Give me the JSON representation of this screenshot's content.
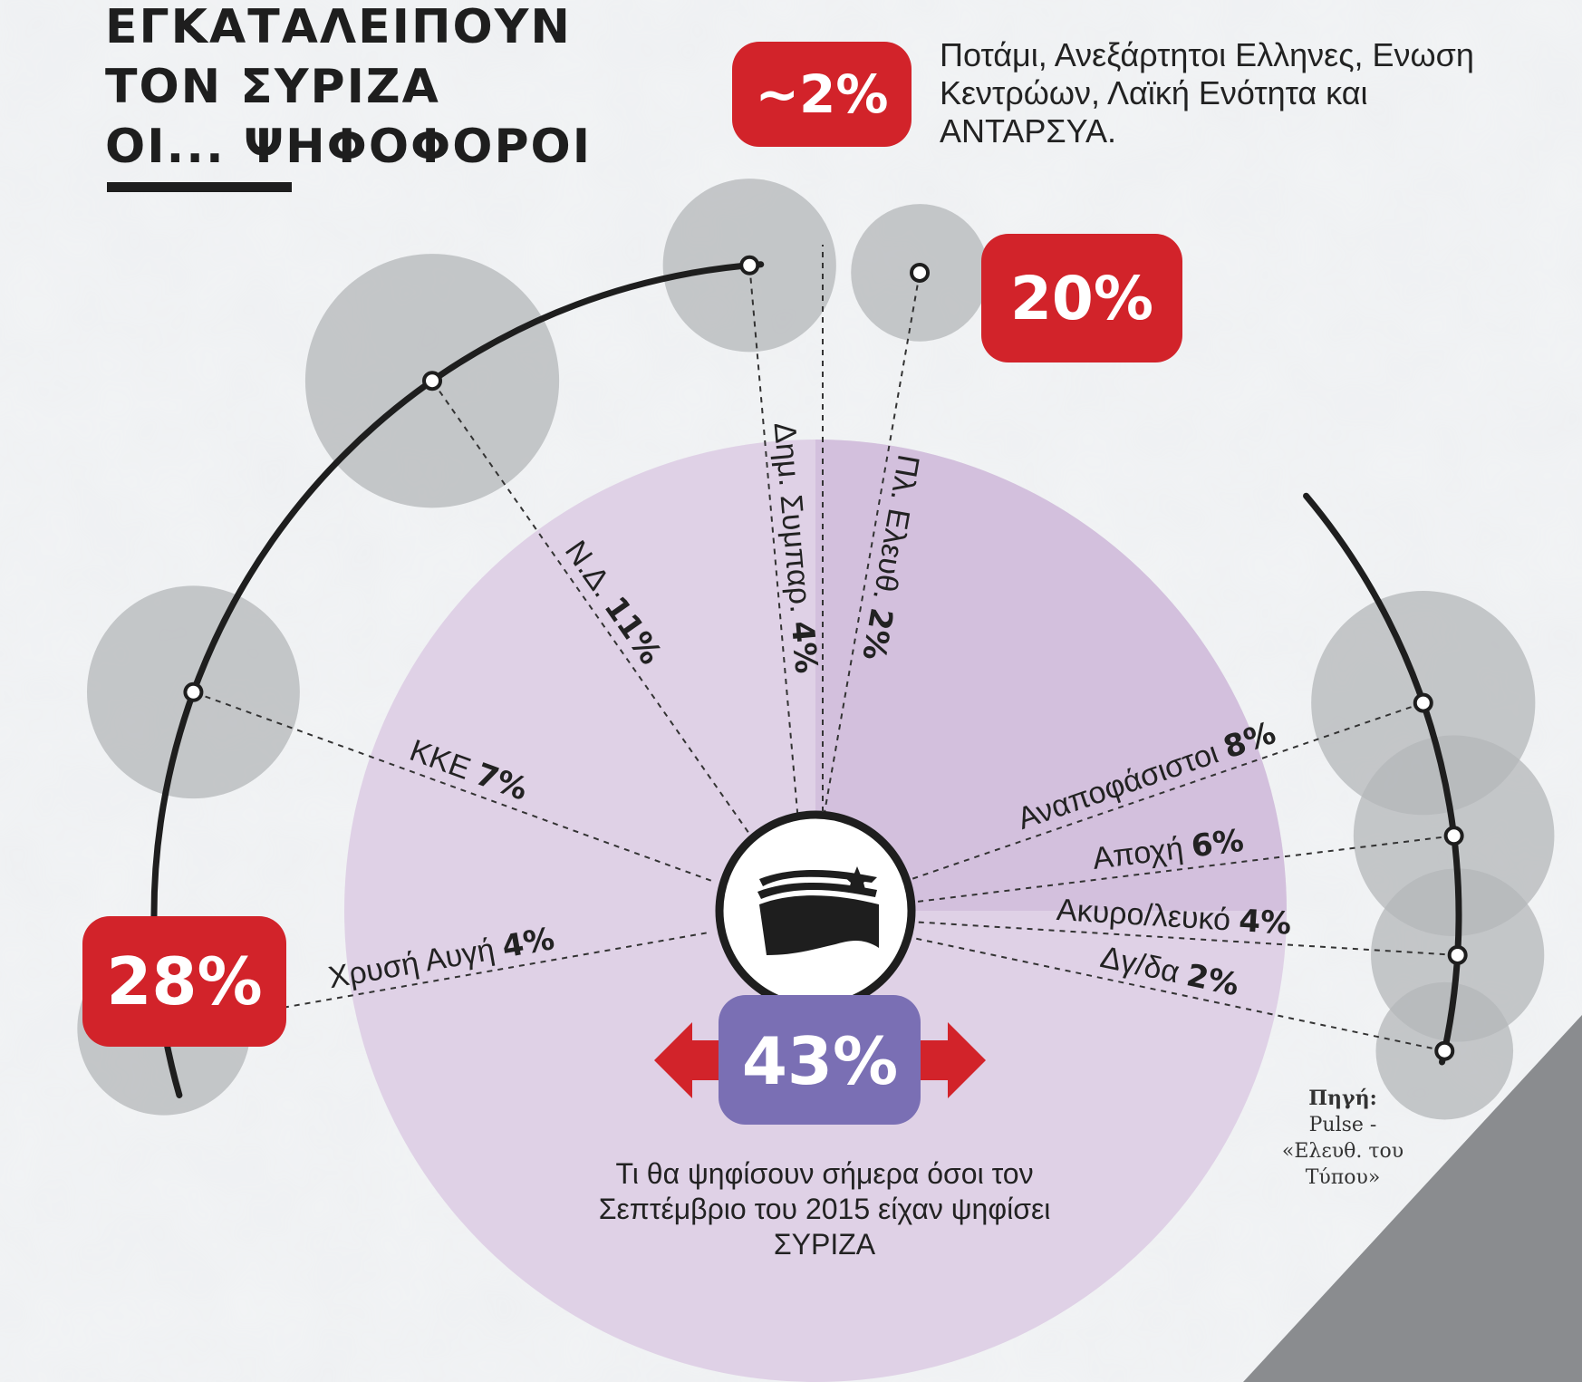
{
  "title": {
    "line1": "ΕΓΚΑΤΑΛΕΙΠΟΥΝ",
    "line2": "ΤΟΝ ΣΥΡΙΖΑ",
    "line3": "ΟΙ... ΨΗΦΟΦΟΡΟΙ"
  },
  "badges": {
    "left": "28%",
    "right": "20%",
    "top": "~2%",
    "center": "43%"
  },
  "note": "Ποτάμι, Ανεξάρτητοι Ελληνες, Ενωση Κεντρώων, Λαϊκή Ενότητα και ΑΝΤΑΡΣΥΑ.",
  "caption": "Τι θα ψηφίσουν σήμερα όσοι τον Σεπτέμβριο του 2015 είχαν ψηφίσει ΣΥΡΙΖΑ",
  "source": {
    "label": "Πηγή:",
    "text": "Pulse - «Ελευθ. του Τύπου»"
  },
  "colors": {
    "red": "#d2232a",
    "purple": "#7a6fb4",
    "bubble": "#b4b7ba",
    "dark": "#1e1e1e",
    "disc": "#ddcde4"
  },
  "icon": "syriza-flag-logo-icon",
  "chart_data": {
    "type": "radial-bubble",
    "title": "ΕΓΚΑΤΑΛΕΙΠΟΥΝ ΤΟΝ ΣΥΡΙΖΑ ΟΙ... ΨΗΦΟΦΟΡΟΙ",
    "left_group_total": 28,
    "right_group_total": 20,
    "others_total": 2,
    "retained": 43,
    "series": [
      {
        "label": "Χρυσή Αυγή",
        "value": 4,
        "value_label": "4%",
        "side": "left"
      },
      {
        "label": "ΚΚΕ",
        "value": 7,
        "value_label": "7%",
        "side": "left"
      },
      {
        "label": "Ν.Δ.",
        "value": 11,
        "value_label": "11%",
        "side": "left"
      },
      {
        "label": "Δημ. Συμπαρ.",
        "value": 4,
        "value_label": "4%",
        "side": "left"
      },
      {
        "label": "Πλ. Ελευθ.",
        "value": 2,
        "value_label": "2%",
        "side": "left"
      },
      {
        "label": "Αναποφάσιστοι",
        "value": 8,
        "value_label": "8%",
        "side": "right"
      },
      {
        "label": "Αποχή",
        "value": 6,
        "value_label": "6%",
        "side": "right"
      },
      {
        "label": "Ακυρο/λευκό",
        "value": 4,
        "value_label": "4%",
        "side": "right"
      },
      {
        "label": "Δγ/δα",
        "value": 2,
        "value_label": "2%",
        "side": "right"
      }
    ]
  }
}
